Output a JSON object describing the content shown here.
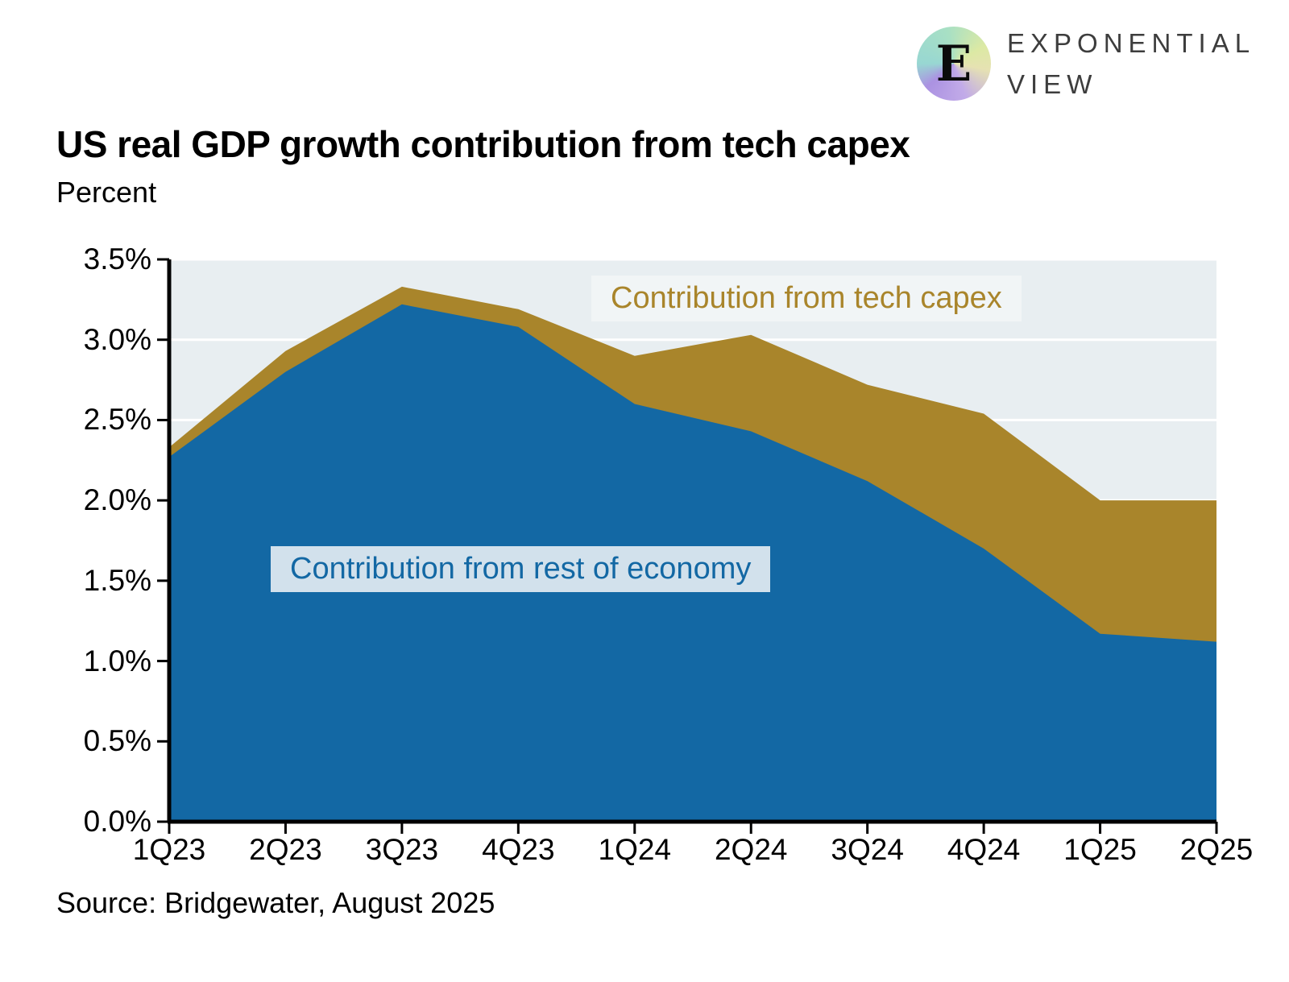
{
  "brand": {
    "logo_letter": "E",
    "name_line1": "EXPONENTIAL",
    "name_line2": "VIEW"
  },
  "footer": {
    "source": "Source: Bridgewater, August 2025"
  },
  "chart_data": {
    "type": "area",
    "stacked": true,
    "title": "US real GDP growth contribution from tech capex",
    "subtitle": "Percent",
    "categories": [
      "1Q23",
      "2Q23",
      "3Q23",
      "4Q23",
      "1Q24",
      "2Q24",
      "3Q24",
      "4Q24",
      "1Q25",
      "2Q25"
    ],
    "series": [
      {
        "name": "Contribution from rest of economy",
        "color": "#1368a4",
        "label_bg": "#d2e1ec",
        "values": [
          2.27,
          2.8,
          3.22,
          3.08,
          2.6,
          2.43,
          2.12,
          1.7,
          1.17,
          1.12
        ]
      },
      {
        "name": "Contribution from tech capex",
        "color": "#a9852b",
        "label_bg": "#f1f5f6",
        "values": [
          0.06,
          0.13,
          0.11,
          0.11,
          0.3,
          0.6,
          0.6,
          0.84,
          0.83,
          0.88
        ]
      }
    ],
    "totals": [
      2.33,
      2.93,
      3.33,
      3.19,
      2.9,
      3.03,
      2.72,
      2.54,
      2.0,
      2.0
    ],
    "ylim": [
      0,
      3.5
    ],
    "ytick_step": 0.5,
    "ytick_format": "percent",
    "grid": true,
    "grid_color": "#ffffff",
    "plot_bg": "#e8eef1",
    "axis_color": "#000000",
    "legend_position": "inside-area-labels"
  }
}
